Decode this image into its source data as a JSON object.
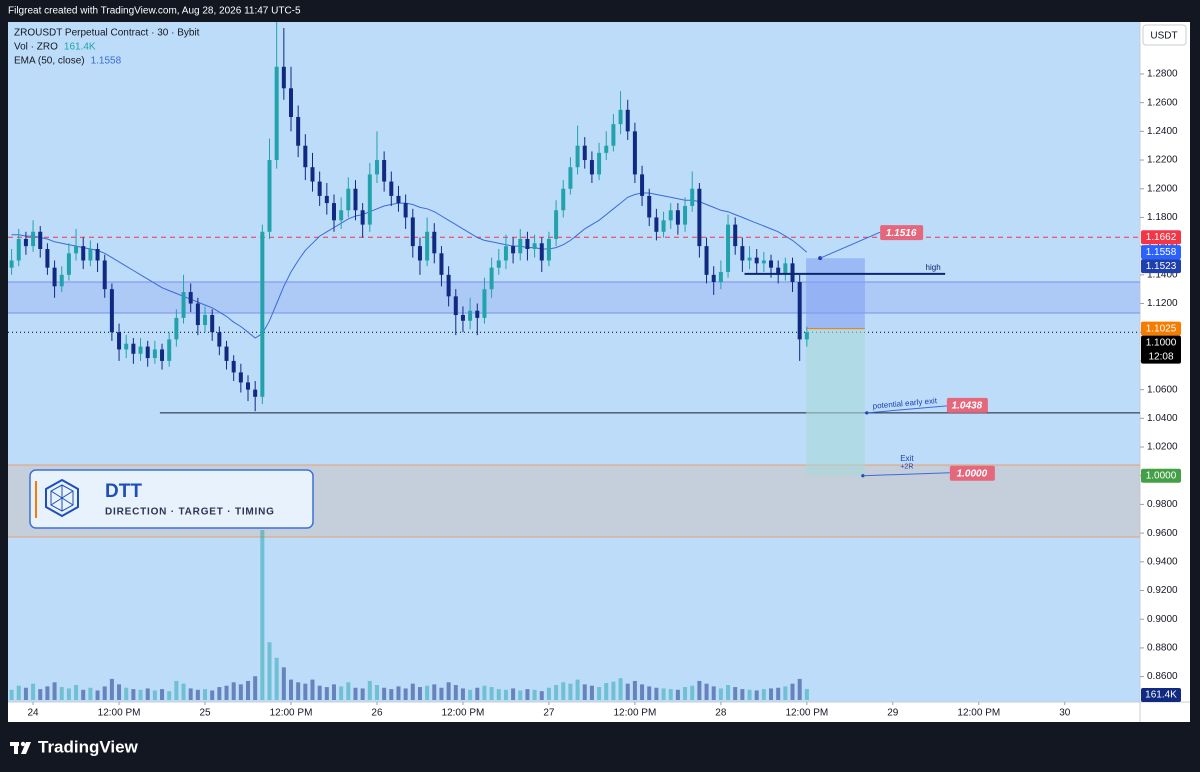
{
  "header": {
    "credit": "Filgreat created with TradingView.com, Aug 28, 2026 11:47 UTC-5"
  },
  "footer": {
    "brand": "TradingView"
  },
  "logo_box": {
    "title": "DTT",
    "subtitle": "DIRECTION · TARGET · TIMING"
  },
  "chart_data": {
    "type": "candlestick",
    "title": "ZROUSDT Perpetual Contract · 30 · Bybit",
    "currency": "USDT",
    "up_color": "#22a3ab",
    "down_color": "#0f2a80",
    "x": [
      -3,
      -2,
      -1,
      0,
      1,
      2,
      3,
      4,
      5,
      6,
      7,
      8,
      9,
      10,
      11,
      12,
      13,
      14,
      15,
      16,
      17,
      18,
      19,
      20,
      21,
      22,
      23,
      24,
      25,
      26,
      27,
      28,
      29,
      30,
      31,
      32,
      33,
      34,
      35,
      36,
      37,
      38,
      39,
      40,
      41,
      42,
      43,
      44,
      45,
      46,
      47,
      48,
      49,
      50,
      51,
      52,
      53,
      54,
      55,
      56,
      57,
      58,
      59,
      60,
      61,
      62,
      63,
      64,
      65,
      66,
      67,
      68,
      69,
      70,
      71,
      72,
      73,
      74,
      75,
      76,
      77,
      78,
      79,
      80,
      81,
      82,
      83,
      84,
      85,
      86,
      87,
      88,
      89,
      90,
      91,
      92,
      93,
      94,
      95,
      96,
      97,
      98,
      99,
      100,
      101,
      102,
      103,
      104,
      105,
      106,
      107,
      108
    ],
    "xlim": [
      -3.5,
      154.5
    ],
    "xticks": [
      {
        "value": 0,
        "label": "24"
      },
      {
        "value": 12,
        "label": "12:00 PM"
      },
      {
        "value": 24,
        "label": "25"
      },
      {
        "value": 36,
        "label": "12:00 PM"
      },
      {
        "value": 48,
        "label": "26"
      },
      {
        "value": 60,
        "label": "12:00 PM"
      },
      {
        "value": 72,
        "label": "27"
      },
      {
        "value": 84,
        "label": "12:00 PM"
      },
      {
        "value": 96,
        "label": "28"
      },
      {
        "value": 108,
        "label": "12:00 PM"
      },
      {
        "value": 120,
        "label": "29"
      },
      {
        "value": 132,
        "label": "12:00 PM"
      },
      {
        "value": 144,
        "label": "30"
      }
    ],
    "ylim": [
      0.8423,
      1.3162
    ],
    "yticks": [
      {
        "value": 0.86,
        "label": "0.8600"
      },
      {
        "value": 0.88,
        "label": "0.8800"
      },
      {
        "value": 0.9,
        "label": "0.9000"
      },
      {
        "value": 0.92,
        "label": "0.9200"
      },
      {
        "value": 0.94,
        "label": "0.9400"
      },
      {
        "value": 0.96,
        "label": "0.9600"
      },
      {
        "value": 0.98,
        "label": "0.9800"
      },
      {
        "value": 1.0,
        "label": "1.0000"
      },
      {
        "value": 1.02,
        "label": "1.0200"
      },
      {
        "value": 1.04,
        "label": "1.0400"
      },
      {
        "value": 1.06,
        "label": "1.0600"
      },
      {
        "value": 1.08,
        "label": "1.0800"
      },
      {
        "value": 1.1,
        "label": "1.1000"
      },
      {
        "value": 1.12,
        "label": "1.1200"
      },
      {
        "value": 1.14,
        "label": "1.1400"
      },
      {
        "value": 1.16,
        "label": "1.1600"
      },
      {
        "value": 1.18,
        "label": "1.1800"
      },
      {
        "value": 1.2,
        "label": "1.2000"
      },
      {
        "value": 1.22,
        "label": "1.2200"
      },
      {
        "value": 1.24,
        "label": "1.2400"
      },
      {
        "value": 1.26,
        "label": "1.2600"
      },
      {
        "value": 1.28,
        "label": "1.2800"
      }
    ],
    "candles": {
      "values": [
        [
          1.145,
          1.158,
          1.14,
          1.15
        ],
        [
          1.15,
          1.172,
          1.146,
          1.165
        ],
        [
          1.165,
          1.17,
          1.154,
          1.16
        ],
        [
          1.16,
          1.178,
          1.156,
          1.17
        ],
        [
          1.17,
          1.174,
          1.152,
          1.158
        ],
        [
          1.158,
          1.162,
          1.14,
          1.145
        ],
        [
          1.145,
          1.15,
          1.124,
          1.132
        ],
        [
          1.132,
          1.146,
          1.128,
          1.14
        ],
        [
          1.14,
          1.162,
          1.136,
          1.155
        ],
        [
          1.155,
          1.172,
          1.15,
          1.16
        ],
        [
          1.16,
          1.166,
          1.144,
          1.15
        ],
        [
          1.15,
          1.164,
          1.146,
          1.158
        ],
        [
          1.158,
          1.162,
          1.142,
          1.15
        ],
        [
          1.15,
          1.154,
          1.124,
          1.13
        ],
        [
          1.13,
          1.134,
          1.094,
          1.1
        ],
        [
          1.1,
          1.106,
          1.08,
          1.088
        ],
        [
          1.088,
          1.098,
          1.082,
          1.092
        ],
        [
          1.092,
          1.096,
          1.078,
          1.085
        ],
        [
          1.085,
          1.096,
          1.08,
          1.09
        ],
        [
          1.09,
          1.094,
          1.076,
          1.082
        ],
        [
          1.082,
          1.094,
          1.078,
          1.088
        ],
        [
          1.088,
          1.092,
          1.074,
          1.08
        ],
        [
          1.08,
          1.1,
          1.076,
          1.095
        ],
        [
          1.095,
          1.116,
          1.09,
          1.11
        ],
        [
          1.11,
          1.14,
          1.106,
          1.128
        ],
        [
          1.128,
          1.134,
          1.114,
          1.12
        ],
        [
          1.12,
          1.124,
          1.098,
          1.105
        ],
        [
          1.105,
          1.118,
          1.1,
          1.112
        ],
        [
          1.112,
          1.116,
          1.094,
          1.1
        ],
        [
          1.1,
          1.104,
          1.084,
          1.09
        ],
        [
          1.09,
          1.094,
          1.074,
          1.08
        ],
        [
          1.08,
          1.084,
          1.066,
          1.072
        ],
        [
          1.072,
          1.078,
          1.058,
          1.065
        ],
        [
          1.065,
          1.07,
          1.052,
          1.06
        ],
        [
          1.06,
          1.066,
          1.045,
          1.055
        ],
        [
          1.055,
          1.175,
          1.05,
          1.17
        ],
        [
          1.17,
          1.235,
          1.165,
          1.22
        ],
        [
          1.22,
          1.318,
          1.214,
          1.285
        ],
        [
          1.285,
          1.312,
          1.262,
          1.27
        ],
        [
          1.27,
          1.285,
          1.24,
          1.25
        ],
        [
          1.25,
          1.258,
          1.222,
          1.23
        ],
        [
          1.23,
          1.238,
          1.206,
          1.215
        ],
        [
          1.215,
          1.225,
          1.198,
          1.205
        ],
        [
          1.205,
          1.212,
          1.188,
          1.195
        ],
        [
          1.195,
          1.204,
          1.182,
          1.19
        ],
        [
          1.19,
          1.196,
          1.17,
          1.178
        ],
        [
          1.178,
          1.194,
          1.172,
          1.185
        ],
        [
          1.185,
          1.208,
          1.18,
          1.2
        ],
        [
          1.2,
          1.206,
          1.178,
          1.185
        ],
        [
          1.185,
          1.19,
          1.166,
          1.175
        ],
        [
          1.175,
          1.218,
          1.17,
          1.21
        ],
        [
          1.21,
          1.24,
          1.204,
          1.22
        ],
        [
          1.22,
          1.226,
          1.198,
          1.205
        ],
        [
          1.205,
          1.212,
          1.188,
          1.195
        ],
        [
          1.195,
          1.202,
          1.184,
          1.19
        ],
        [
          1.19,
          1.196,
          1.172,
          1.18
        ],
        [
          1.18,
          1.186,
          1.152,
          1.16
        ],
        [
          1.16,
          1.166,
          1.14,
          1.15
        ],
        [
          1.15,
          1.18,
          1.146,
          1.17
        ],
        [
          1.17,
          1.176,
          1.148,
          1.155
        ],
        [
          1.155,
          1.16,
          1.132,
          1.14
        ],
        [
          1.14,
          1.146,
          1.118,
          1.125
        ],
        [
          1.125,
          1.13,
          1.098,
          1.112
        ],
        [
          1.112,
          1.118,
          1.1,
          1.108
        ],
        [
          1.108,
          1.124,
          1.102,
          1.115
        ],
        [
          1.115,
          1.12,
          1.098,
          1.11
        ],
        [
          1.11,
          1.138,
          1.106,
          1.13
        ],
        [
          1.13,
          1.152,
          1.124,
          1.145
        ],
        [
          1.145,
          1.158,
          1.14,
          1.15
        ],
        [
          1.15,
          1.168,
          1.144,
          1.16
        ],
        [
          1.16,
          1.166,
          1.148,
          1.155
        ],
        [
          1.155,
          1.172,
          1.15,
          1.165
        ],
        [
          1.165,
          1.17,
          1.15,
          1.158
        ],
        [
          1.158,
          1.168,
          1.152,
          1.162
        ],
        [
          1.162,
          1.166,
          1.142,
          1.15
        ],
        [
          1.15,
          1.17,
          1.146,
          1.165
        ],
        [
          1.165,
          1.192,
          1.16,
          1.185
        ],
        [
          1.185,
          1.206,
          1.18,
          1.2
        ],
        [
          1.2,
          1.222,
          1.196,
          1.215
        ],
        [
          1.215,
          1.244,
          1.21,
          1.23
        ],
        [
          1.23,
          1.236,
          1.214,
          1.22
        ],
        [
          1.22,
          1.226,
          1.204,
          1.21
        ],
        [
          1.21,
          1.232,
          1.206,
          1.225
        ],
        [
          1.225,
          1.24,
          1.22,
          1.23
        ],
        [
          1.23,
          1.252,
          1.226,
          1.245
        ],
        [
          1.245,
          1.268,
          1.238,
          1.255
        ],
        [
          1.255,
          1.262,
          1.234,
          1.24
        ],
        [
          1.24,
          1.246,
          1.204,
          1.21
        ],
        [
          1.21,
          1.216,
          1.188,
          1.195
        ],
        [
          1.195,
          1.2,
          1.174,
          1.18
        ],
        [
          1.18,
          1.186,
          1.164,
          1.17
        ],
        [
          1.17,
          1.184,
          1.166,
          1.178
        ],
        [
          1.178,
          1.19,
          1.172,
          1.185
        ],
        [
          1.185,
          1.19,
          1.168,
          1.175
        ],
        [
          1.175,
          1.194,
          1.17,
          1.188
        ],
        [
          1.188,
          1.212,
          1.184,
          1.2
        ],
        [
          1.2,
          1.204,
          1.152,
          1.16
        ],
        [
          1.16,
          1.166,
          1.134,
          1.14
        ],
        [
          1.14,
          1.146,
          1.126,
          1.135
        ],
        [
          1.135,
          1.15,
          1.13,
          1.142
        ],
        [
          1.142,
          1.182,
          1.138,
          1.175
        ],
        [
          1.175,
          1.18,
          1.154,
          1.16
        ],
        [
          1.16,
          1.166,
          1.142,
          1.15
        ],
        [
          1.15,
          1.16,
          1.144,
          1.152
        ],
        [
          1.152,
          1.158,
          1.14,
          1.148
        ],
        [
          1.148,
          1.156,
          1.142,
          1.15
        ],
        [
          1.15,
          1.154,
          1.138,
          1.145
        ],
        [
          1.145,
          1.15,
          1.134,
          1.14
        ],
        [
          1.14,
          1.152,
          1.136,
          1.148
        ],
        [
          1.148,
          1.152,
          1.128,
          1.135
        ],
        [
          1.135,
          1.14,
          1.08,
          1.095
        ],
        [
          1.095,
          1.104,
          1.09,
          1.1
        ]
      ]
    },
    "ema": {
      "name": "EMA (50, close)",
      "color": "#3d6ad6",
      "values": [
        1.168,
        1.168,
        1.167,
        1.167,
        1.166,
        1.165,
        1.163,
        1.162,
        1.161,
        1.16,
        1.159,
        1.158,
        1.157,
        1.155,
        1.152,
        1.149,
        1.146,
        1.143,
        1.14,
        1.137,
        1.134,
        1.131,
        1.129,
        1.127,
        1.125,
        1.123,
        1.121,
        1.119,
        1.117,
        1.114,
        1.111,
        1.107,
        1.104,
        1.1,
        1.096,
        1.099,
        1.108,
        1.12,
        1.132,
        1.142,
        1.15,
        1.157,
        1.162,
        1.167,
        1.17,
        1.173,
        1.176,
        1.179,
        1.181,
        1.182,
        1.184,
        1.186,
        1.188,
        1.189,
        1.19,
        1.19,
        1.189,
        1.187,
        1.186,
        1.184,
        1.181,
        1.178,
        1.175,
        1.172,
        1.169,
        1.166,
        1.164,
        1.163,
        1.162,
        1.161,
        1.16,
        1.16,
        1.159,
        1.159,
        1.158,
        1.158,
        1.159,
        1.161,
        1.164,
        1.168,
        1.172,
        1.175,
        1.178,
        1.182,
        1.186,
        1.19,
        1.194,
        1.196,
        1.197,
        1.197,
        1.196,
        1.195,
        1.194,
        1.193,
        1.192,
        1.192,
        1.191,
        1.189,
        1.187,
        1.185,
        1.184,
        1.182,
        1.18,
        1.178,
        1.176,
        1.174,
        1.172,
        1.17,
        1.167,
        1.164,
        1.16,
        1.1558
      ]
    },
    "volume": {
      "name": "Vol · ZRO",
      "ylim": [
        0,
        2500000
      ],
      "last_label": "161.4K",
      "values": [
        150000,
        210000,
        180000,
        240000,
        160000,
        200000,
        260000,
        190000,
        170000,
        220000,
        150000,
        180000,
        140000,
        200000,
        310000,
        230000,
        180000,
        160000,
        150000,
        170000,
        140000,
        160000,
        130000,
        280000,
        240000,
        170000,
        150000,
        160000,
        140000,
        190000,
        210000,
        260000,
        230000,
        280000,
        350000,
        2500000,
        850000,
        620000,
        480000,
        300000,
        260000,
        240000,
        300000,
        210000,
        190000,
        230000,
        200000,
        260000,
        180000,
        170000,
        280000,
        220000,
        180000,
        160000,
        200000,
        170000,
        240000,
        190000,
        210000,
        230000,
        180000,
        260000,
        220000,
        170000,
        150000,
        180000,
        210000,
        190000,
        160000,
        150000,
        170000,
        140000,
        160000,
        150000,
        130000,
        180000,
        220000,
        260000,
        240000,
        300000,
        230000,
        210000,
        190000,
        250000,
        270000,
        320000,
        240000,
        280000,
        230000,
        200000,
        180000,
        170000,
        160000,
        150000,
        190000,
        210000,
        280000,
        240000,
        200000,
        170000,
        220000,
        190000,
        160000,
        150000,
        140000,
        160000,
        170000,
        180000,
        200000,
        240000,
        310000,
        161400
      ]
    },
    "price_tags": [
      {
        "value": 1.1662,
        "label": "1.1662",
        "color": "#f23645",
        "line": "dashed"
      },
      {
        "value": 1.1523,
        "label": "1.1523",
        "color": "#1e3fae"
      },
      {
        "value": 1.1,
        "label": "1.1000",
        "color": "#000000",
        "line": "dotted",
        "countdown": "12:08"
      }
    ],
    "zones": [
      {
        "range": [
          1.1134,
          1.135
        ],
        "color": "#7d8ff0"
      },
      {
        "range": [
          0.9573,
          1.0075
        ],
        "color": "#e8a070"
      }
    ],
    "high": {
      "value": 1.1407,
      "text": "high",
      "x": [
        99.3,
        127.3
      ]
    },
    "early_exit": {
      "value": 1.0438,
      "label": "1.0438",
      "text": "potential early exit",
      "x_start": 17.7
    },
    "position": {
      "x": [
        107.9,
        116.1
      ],
      "entry": 1.1025,
      "stop": {
        "value": 1.1516,
        "label": "1.1516"
      },
      "target": {
        "value": 1.0,
        "label": "1.0000"
      },
      "exit_text": "Exit",
      "exit_sub": "+2R"
    }
  }
}
